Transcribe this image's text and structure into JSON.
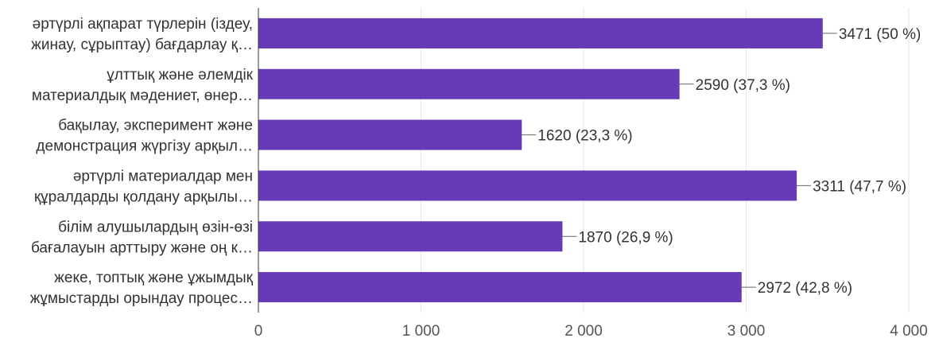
{
  "chart_data": {
    "type": "bar",
    "orientation": "horizontal",
    "categories": [
      [
        "әртүрлі ақпарат түрлерін (іздеу,",
        "жинау, сұрыптау) бағдарлау қ…"
      ],
      [
        "ұлттық және әлемдік",
        "материалдық мәдениет, өнер…"
      ],
      [
        "бақылау, эксперимент және",
        "демонстрация жүргізу арқыл…"
      ],
      [
        "әртүрлі материалдар мен",
        "құралдарды қолдану арқылы…"
      ],
      [
        "білім алушылардың өзін-өзі",
        "бағалауын арттыру және оң к…"
      ],
      [
        "жеке, топтық және ұжымдық",
        "жұмыстарды орындау процес…"
      ]
    ],
    "values": [
      3471,
      2590,
      1620,
      3311,
      1870,
      2972
    ],
    "value_labels": [
      "3471 (50 %)",
      "2590 (37,3 %)",
      "1620 (23,3 %)",
      "3311 (47,7 %)",
      "1870 (26,9 %)",
      "2972 (42,8 %)"
    ],
    "xlim": [
      0,
      4000
    ],
    "xticks": [
      0,
      1000,
      2000,
      3000,
      4000
    ],
    "xtick_labels": [
      "0",
      "1 000",
      "2 000",
      "3 000",
      "4 000"
    ],
    "grid": true,
    "bar_color": "#673ab7",
    "title": "",
    "xlabel": "",
    "ylabel": ""
  }
}
